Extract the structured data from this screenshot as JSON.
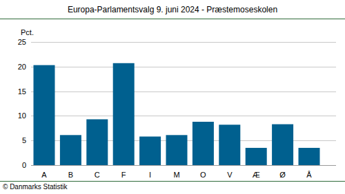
{
  "chart_data": {
    "type": "bar",
    "title": "Europa-Parlamentsvalg 9. juni 2024 - Præstemoseskolen",
    "y_label": "Pct.",
    "categories": [
      "A",
      "B",
      "C",
      "F",
      "I",
      "M",
      "O",
      "V",
      "Æ",
      "Ø",
      "Å"
    ],
    "values": [
      20.3,
      6.1,
      9.3,
      20.7,
      5.8,
      6.1,
      8.8,
      8.2,
      3.5,
      8.3,
      3.5
    ],
    "color": "#00608f",
    "ylim": [
      0,
      25
    ],
    "yticks": [
      0,
      5,
      10,
      15,
      20,
      25
    ],
    "grid": true,
    "source": "© Danmarks Statistik"
  }
}
